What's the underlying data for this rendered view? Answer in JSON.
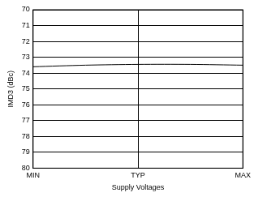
{
  "chart_data": {
    "type": "line",
    "x_label": "Supply Voltages",
    "y_label": "IMD3 (dBc)",
    "categories": [
      "MIN",
      null,
      "TYP",
      null,
      "MAX"
    ],
    "values": [
      73.6,
      73.5,
      73.45,
      73.45,
      73.5
    ],
    "color": "#000000",
    "ylim": [
      80,
      70
    ],
    "yticks": [
      70,
      71,
      72,
      73,
      74,
      75,
      76,
      77,
      78,
      79,
      80
    ],
    "grid": true
  }
}
